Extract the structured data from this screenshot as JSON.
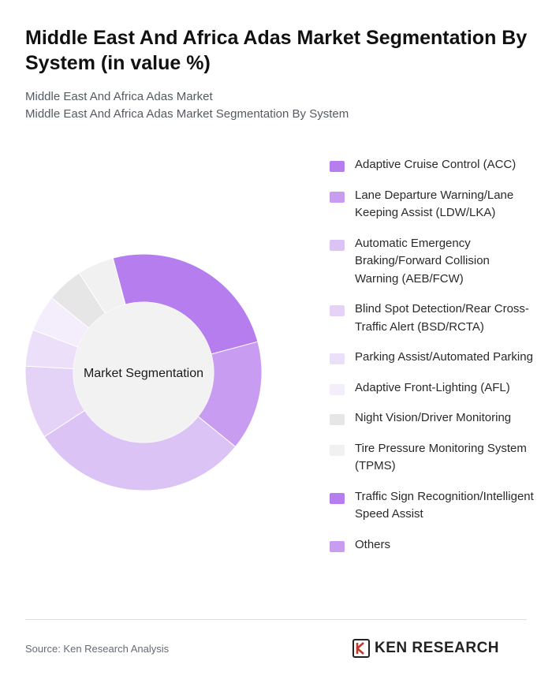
{
  "header": {
    "title": "Middle East And Africa Adas Market Segmentation By System (in value %)",
    "subtitle_line1": "Middle East And Africa Adas Market",
    "subtitle_line2": "Middle East And Africa Adas Market Segmentation By System"
  },
  "chart_data": {
    "type": "pie",
    "variant": "donut",
    "center_label": "Market Segmentation",
    "categories": [
      "Adaptive Cruise Control (ACC)",
      "Lane Departure Warning/Lane Keeping Assist (LDW/LKA)",
      "Automatic Emergency Braking/Forward Collision Warning (AEB/FCW)",
      "Blind Spot Detection/Rear Cross-Traffic Alert (BSD/RCTA)",
      "Parking Assist/Automated Parking",
      "Adaptive Front-Lighting (AFL)",
      "Night Vision/Driver Monitoring",
      "Tire Pressure Monitoring System (TPMS)",
      "Traffic Sign Recognition/Intelligent Speed Assist",
      "Others"
    ],
    "values": [
      25,
      15,
      30,
      10,
      5,
      5,
      5,
      5,
      0,
      0
    ],
    "colors": [
      "#b57ded",
      "#c89cf0",
      "#dcc3f5",
      "#e5d2f7",
      "#ecdff9",
      "#f4edfc",
      "#e6e6e6",
      "#f1f1f1",
      "#b57ded",
      "#c89cf0"
    ],
    "start_angle_deg": -15,
    "legend_position": "right"
  },
  "footer": {
    "source": "Source: Ken Research Analysis",
    "logo_text": "KEN RESEARCH"
  }
}
